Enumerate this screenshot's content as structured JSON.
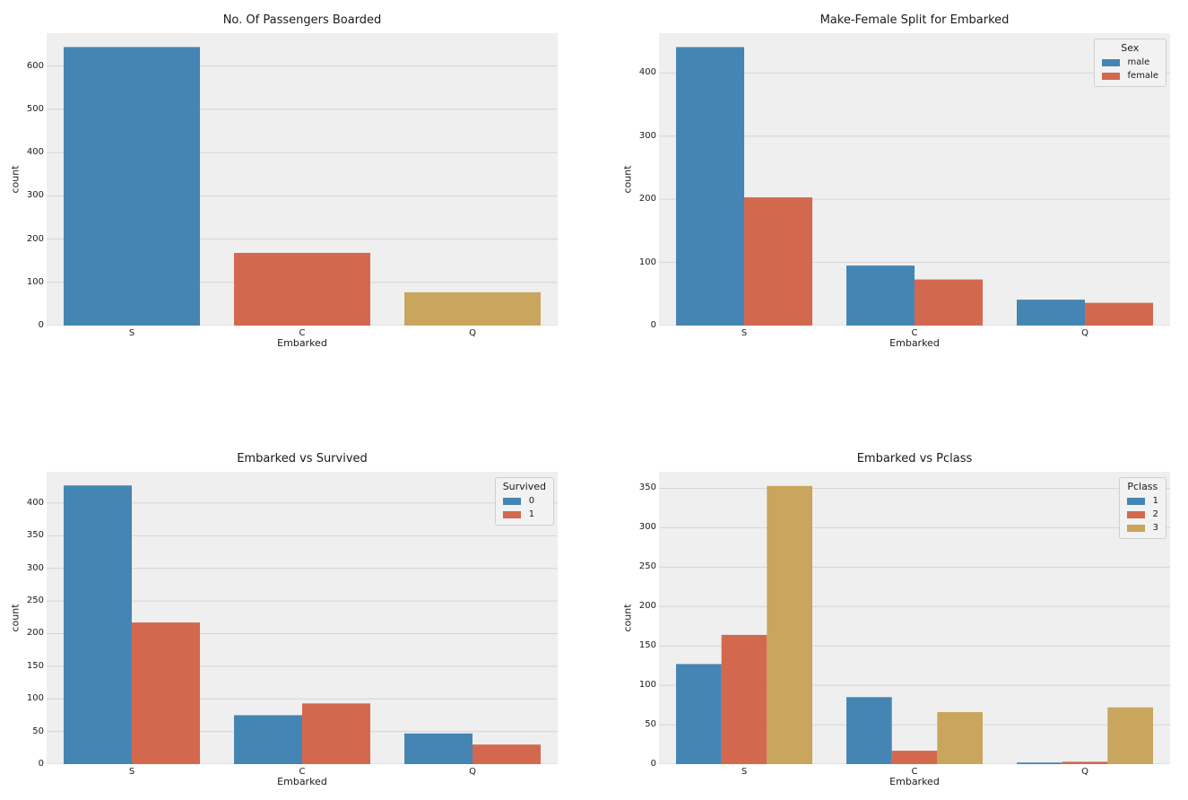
{
  "figure": {
    "background": "#ffffff",
    "axes_background": "#efefef",
    "grid_color": "#d4d4d4",
    "text_color": "#1a1a1a"
  },
  "palette": {
    "blue": "#4585b4",
    "red": "#d2694f",
    "tan": "#c9a55e"
  },
  "chart_data": [
    {
      "type": "bar",
      "title": "No. Of Passengers Boarded",
      "xlabel": "Embarked",
      "ylabel": "count",
      "categories": [
        "S",
        "C",
        "Q"
      ],
      "series": [
        {
          "name": "count",
          "color": "blue",
          "values": [
            644,
            168,
            77
          ]
        }
      ],
      "bar_colors": [
        "blue",
        "red",
        "tan"
      ],
      "ylim": [
        0,
        676
      ],
      "yticks": [
        0,
        100,
        200,
        300,
        400,
        500,
        600
      ],
      "grid": true,
      "legend": null
    },
    {
      "type": "bar",
      "title": "Make-Female Split for Embarked",
      "xlabel": "Embarked",
      "ylabel": "count",
      "categories": [
        "S",
        "C",
        "Q"
      ],
      "series": [
        {
          "name": "male",
          "color": "blue",
          "values": [
            441,
            95,
            41
          ]
        },
        {
          "name": "female",
          "color": "red",
          "values": [
            203,
            73,
            36
          ]
        }
      ],
      "ylim": [
        0,
        463
      ],
      "yticks": [
        0,
        100,
        200,
        300,
        400
      ],
      "grid": true,
      "legend": {
        "title": "Sex",
        "entries": [
          "male",
          "female"
        ],
        "position": "upper-right"
      }
    },
    {
      "type": "bar",
      "title": "Embarked vs Survived",
      "xlabel": "Embarked",
      "ylabel": "count",
      "categories": [
        "S",
        "C",
        "Q"
      ],
      "series": [
        {
          "name": "0",
          "color": "blue",
          "values": [
            427,
            75,
            47
          ]
        },
        {
          "name": "1",
          "color": "red",
          "values": [
            217,
            93,
            30
          ]
        }
      ],
      "ylim": [
        0,
        448
      ],
      "yticks": [
        0,
        50,
        100,
        150,
        200,
        250,
        300,
        350,
        400
      ],
      "grid": true,
      "legend": {
        "title": "Survived",
        "entries": [
          "0",
          "1"
        ],
        "position": "upper-right"
      }
    },
    {
      "type": "bar",
      "title": "Embarked vs Pclass",
      "xlabel": "Embarked",
      "ylabel": "count",
      "categories": [
        "S",
        "C",
        "Q"
      ],
      "series": [
        {
          "name": "1",
          "color": "blue",
          "values": [
            127,
            85,
            2
          ]
        },
        {
          "name": "2",
          "color": "red",
          "values": [
            164,
            17,
            3
          ]
        },
        {
          "name": "3",
          "color": "tan",
          "values": [
            353,
            66,
            72
          ]
        }
      ],
      "ylim": [
        0,
        371
      ],
      "yticks": [
        0,
        50,
        100,
        150,
        200,
        250,
        300,
        350
      ],
      "grid": true,
      "legend": {
        "title": "Pclass",
        "entries": [
          "1",
          "2",
          "3"
        ],
        "position": "upper-right"
      }
    }
  ]
}
